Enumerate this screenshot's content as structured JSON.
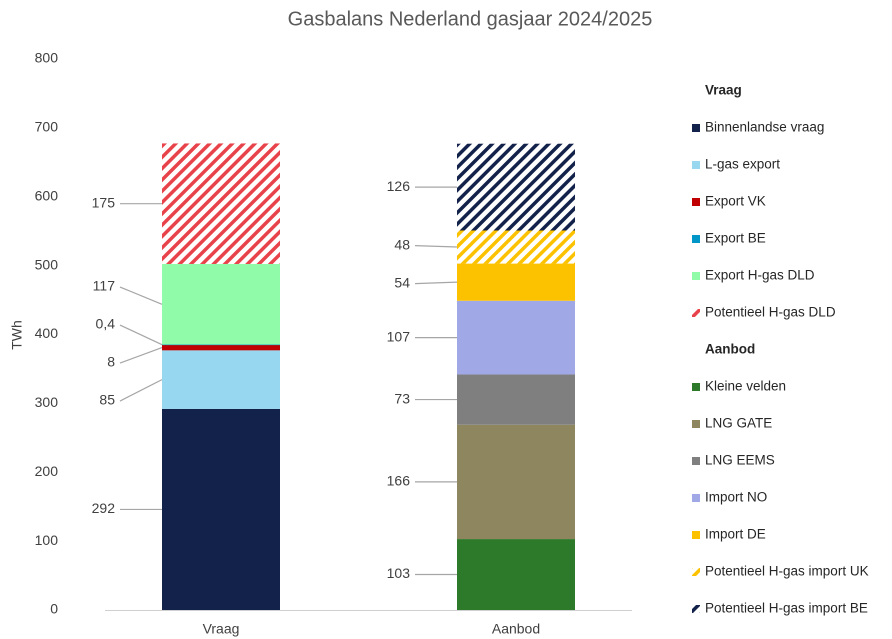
{
  "chart_data": {
    "type": "stacked_bar",
    "title": "Gasbalans Nederland gasjaar 2024/2025",
    "ylabel": "TWh",
    "categories": [
      "Vraag",
      "Aanbod"
    ],
    "ylim": [
      0,
      800
    ],
    "yticks": [
      0,
      100,
      200,
      300,
      400,
      500,
      600,
      700,
      800
    ],
    "grid": false,
    "legend": "right",
    "series": [
      {
        "name": "Binnenlandse vraag",
        "color": "#12224a",
        "values": [
          292,
          null
        ]
      },
      {
        "name": "L-gas export",
        "color": "#97d7ef",
        "values": [
          85,
          null
        ]
      },
      {
        "name": "Export VK",
        "color": "#c00000",
        "values": [
          8,
          null
        ]
      },
      {
        "name": "Export BE",
        "color": "#0096c7",
        "values": [
          0.4,
          null
        ],
        "value_labels": [
          "0,4",
          null
        ]
      },
      {
        "name": "Export H-gas DLD",
        "color": "#90fba8",
        "values": [
          117,
          null
        ]
      },
      {
        "name": "Potentieel H-gas DLD",
        "color": "#e8434a",
        "hatch": true,
        "values": [
          175,
          null
        ]
      },
      {
        "name": "Kleine velden",
        "color": "#2e7a2b",
        "values": [
          null,
          103
        ]
      },
      {
        "name": "LNG GATE",
        "color": "#8e865f",
        "values": [
          null,
          166
        ]
      },
      {
        "name": "LNG EEMS",
        "color": "#7f7f7f",
        "values": [
          null,
          73
        ]
      },
      {
        "name": "Import NO",
        "color": "#a1a8e6",
        "values": [
          null,
          107
        ]
      },
      {
        "name": "Import DE",
        "color": "#fcc200",
        "values": [
          null,
          54
        ]
      },
      {
        "name": "Potentieel H-gas import UK",
        "color": "#fcc200",
        "hatch": true,
        "values": [
          null,
          48
        ]
      },
      {
        "name": "Potentieel H-gas import BE",
        "color": "#12224a",
        "hatch": true,
        "values": [
          null,
          126
        ]
      }
    ]
  }
}
